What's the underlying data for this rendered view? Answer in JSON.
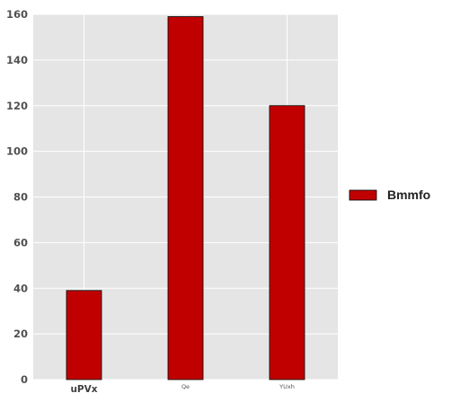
{
  "chart_data": {
    "type": "bar",
    "categories": [
      "uPVx",
      "Qe",
      "YUxh"
    ],
    "series": [
      {
        "name": "Bmmfo",
        "values": [
          39,
          159,
          120
        ],
        "color": "#c00000"
      }
    ],
    "title": "",
    "xlabel": "",
    "ylabel": "",
    "ylim": [
      0,
      160
    ],
    "yticks": [
      0,
      20,
      40,
      60,
      80,
      100,
      120,
      140,
      160
    ],
    "grid": true,
    "legend_position": "right",
    "plot_background": "#e5e5e5",
    "grid_color": "#ffffff"
  }
}
